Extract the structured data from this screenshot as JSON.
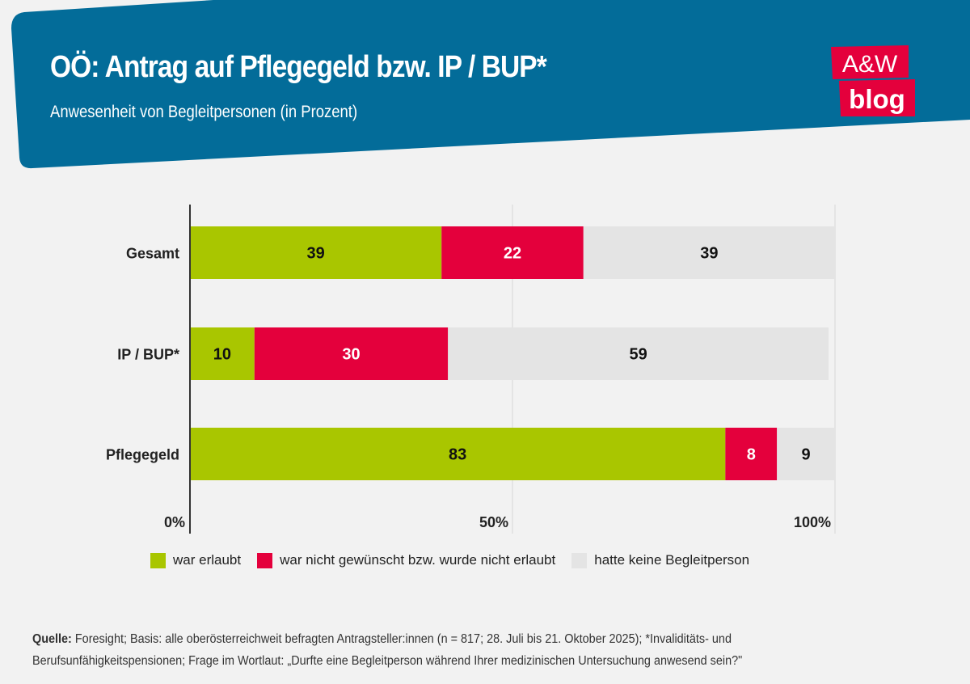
{
  "header": {
    "title": "OÖ: Antrag auf Pflegegeld bzw. IP / BUP*",
    "subtitle": "Anwesenheit von Begleitpersonen (in Prozent)",
    "logo_text": [
      "A&W",
      "blog"
    ],
    "background_color": "#036c99",
    "logo_color": "#e4003c"
  },
  "chart_data": {
    "type": "bar",
    "orientation": "horizontal",
    "stacked": true,
    "title": "OÖ: Antrag auf Pflegegeld bzw. IP / BUP*",
    "subtitle": "Anwesenheit von Begleitpersonen (in Prozent)",
    "categories": [
      "Gesamt",
      "IP / BUP*",
      "Pflegegeld"
    ],
    "series": [
      {
        "name": "war erlaubt",
        "color": "#a9c600",
        "label_color": "#111111",
        "values": [
          39,
          10,
          83
        ]
      },
      {
        "name": "war nicht gewünscht bzw. wurde nicht erlaubt",
        "color": "#e4003c",
        "label_color": "#ffffff",
        "values": [
          22,
          30,
          8
        ]
      },
      {
        "name": "hatte keine Begleitperson",
        "color": "#e4e4e4",
        "label_color": "#111111",
        "values": [
          39,
          59,
          9
        ]
      }
    ],
    "xlim": [
      0,
      100
    ],
    "xticks": [
      0,
      50,
      100
    ],
    "xtick_labels": [
      "0%",
      "50%",
      "100%"
    ],
    "grid": true,
    "legend_position": "bottom"
  },
  "footer": {
    "source_label": "Quelle:",
    "source_line1": " Foresight; Basis: alle oberösterreichweit befragten Antragsteller:innen (n = 817; 28. Juli bis 21. Oktober 2025); *Invaliditäts- und",
    "source_line2": "Berufsunfähigkeitspensionen; Frage im Wortlaut: „Durfte eine Begleitperson während Ihrer medizinischen Untersuchung anwesend sein?\""
  }
}
